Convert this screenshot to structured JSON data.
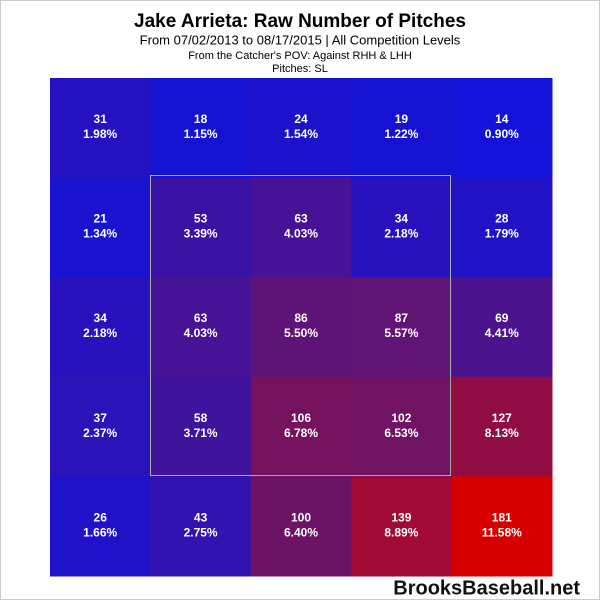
{
  "chart_data": {
    "type": "heatmap",
    "title": "Jake Arrieta: Raw Number of Pitches",
    "subtitle": "From 07/02/2013 to 08/17/2015 | All Competition Levels",
    "note1": "From the Catcher's POV:   Against RHH & LHH",
    "note2": "Pitches:  SL",
    "watermark": "BrooksBaseball.net",
    "values": [
      [
        31,
        18,
        24,
        19,
        14
      ],
      [
        21,
        53,
        63,
        34,
        28
      ],
      [
        34,
        63,
        86,
        87,
        69
      ],
      [
        37,
        58,
        106,
        102,
        127
      ],
      [
        26,
        43,
        100,
        139,
        181
      ]
    ],
    "percents": [
      [
        1.98,
        1.15,
        1.54,
        1.22,
        0.9
      ],
      [
        1.34,
        3.39,
        4.03,
        2.18,
        1.79
      ],
      [
        2.18,
        4.03,
        5.5,
        5.57,
        4.41
      ],
      [
        2.37,
        3.71,
        6.78,
        6.53,
        8.13
      ],
      [
        1.66,
        2.75,
        6.4,
        8.89,
        11.58
      ]
    ],
    "percent_labels": [
      [
        "1.98%",
        "1.15%",
        "1.54%",
        "1.22%",
        "0.90%"
      ],
      [
        "1.34%",
        "3.39%",
        "4.03%",
        "2.18%",
        "1.79%"
      ],
      [
        "2.18%",
        "4.03%",
        "5.50%",
        "5.57%",
        "4.41%"
      ],
      [
        "2.37%",
        "3.71%",
        "6.78%",
        "6.53%",
        "8.13%"
      ],
      [
        "1.66%",
        "2.75%",
        "6.40%",
        "8.89%",
        "11.58%"
      ]
    ],
    "colors": [
      "#1212d8",
      "#6a1468",
      "#d60000"
    ]
  }
}
